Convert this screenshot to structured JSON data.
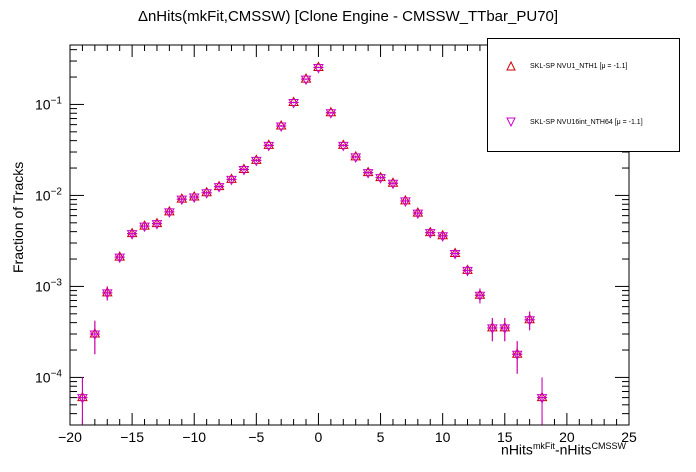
{
  "chart_data": {
    "type": "scatter",
    "title": "ΔnHits(mkFit,CMSSW) [Clone Engine - CMSSW_TTbar_PU70]",
    "xlabel": {
      "base1": "nHits",
      "sup1": "mkFit",
      "mid": "-nHits",
      "sup2": "CMSSW"
    },
    "ylabel": "Fraction of Tracks",
    "xlim": [
      -20,
      25
    ],
    "ylim": [
      3e-05,
      0.45
    ],
    "yscale": "log",
    "x_ticks": [
      "−20",
      "−15",
      "−10",
      "−5",
      "0",
      "5",
      "10",
      "15",
      "20",
      "25"
    ],
    "y_ticks": [
      {
        "base": "10",
        "exp": "−4",
        "value": 0.0001
      },
      {
        "base": "10",
        "exp": "−3",
        "value": 0.001
      },
      {
        "base": "10",
        "exp": "−2",
        "value": 0.01
      },
      {
        "base": "10",
        "exp": "−1",
        "value": 0.1
      }
    ],
    "legend_position": "top-right",
    "series": [
      {
        "name": "SKL-SP NVU1_NTH1 [μ = -1.1]",
        "marker": "triangle-up",
        "color": "#cc0000",
        "points": [
          [
            -19,
            6e-05,
            4e-05
          ],
          [
            -18,
            0.0003,
            0.00012
          ],
          [
            -17,
            0.00085,
            0.00015
          ],
          [
            -16,
            0.0021,
            0.00025
          ],
          [
            -15,
            0.0038,
            0.0003
          ],
          [
            -14,
            0.0046,
            0.0003
          ],
          [
            -13,
            0.0049,
            0.0003
          ],
          [
            -12,
            0.0066,
            0.0004
          ],
          [
            -11,
            0.0091,
            0.0005
          ],
          [
            -10,
            0.0096,
            0.0005
          ],
          [
            -9,
            0.0107,
            0.0005
          ],
          [
            -8,
            0.0125,
            0.0006
          ],
          [
            -7,
            0.015,
            0.0007
          ],
          [
            -6,
            0.0193,
            0.0008
          ],
          [
            -5,
            0.0243,
            0.0009
          ],
          [
            -4,
            0.0355,
            0.0011
          ],
          [
            -3,
            0.058,
            0.0014
          ],
          [
            -2,
            0.105,
            0.002
          ],
          [
            -1,
            0.19,
            0.003
          ],
          [
            0,
            0.255,
            0.004
          ],
          [
            1,
            0.081,
            0.002
          ],
          [
            2,
            0.0355,
            0.0011
          ],
          [
            3,
            0.0265,
            0.0009
          ],
          [
            4,
            0.0178,
            0.0008
          ],
          [
            5,
            0.0157,
            0.0007
          ],
          [
            6,
            0.0136,
            0.0007
          ],
          [
            7,
            0.0087,
            0.0005
          ],
          [
            8,
            0.0064,
            0.0004
          ],
          [
            9,
            0.0039,
            0.0003
          ],
          [
            10,
            0.0036,
            0.0003
          ],
          [
            11,
            0.0023,
            0.00025
          ],
          [
            12,
            0.0015,
            0.0002
          ],
          [
            13,
            0.0008,
            0.00015
          ],
          [
            14,
            0.00035,
            0.0001
          ],
          [
            15,
            0.00035,
            0.0001
          ],
          [
            16,
            0.00018,
            7e-05
          ],
          [
            17,
            0.00043,
            0.0001
          ],
          [
            18,
            6e-05,
            4e-05
          ]
        ]
      },
      {
        "name": "SKL-SP NVU16int_NTH64 [μ = -1.1]",
        "marker": "triangle-down",
        "color": "#cc00cc",
        "points": [
          [
            -19,
            6e-05,
            4e-05
          ],
          [
            -18,
            0.0003,
            0.00012
          ],
          [
            -17,
            0.00085,
            0.00015
          ],
          [
            -16,
            0.0021,
            0.00025
          ],
          [
            -15,
            0.0038,
            0.0003
          ],
          [
            -14,
            0.0046,
            0.0003
          ],
          [
            -13,
            0.0049,
            0.0003
          ],
          [
            -12,
            0.0066,
            0.0004
          ],
          [
            -11,
            0.0091,
            0.0005
          ],
          [
            -10,
            0.0096,
            0.0005
          ],
          [
            -9,
            0.0107,
            0.0005
          ],
          [
            -8,
            0.0125,
            0.0006
          ],
          [
            -7,
            0.015,
            0.0007
          ],
          [
            -6,
            0.0193,
            0.0008
          ],
          [
            -5,
            0.0243,
            0.0009
          ],
          [
            -4,
            0.0355,
            0.0011
          ],
          [
            -3,
            0.058,
            0.0014
          ],
          [
            -2,
            0.105,
            0.002
          ],
          [
            -1,
            0.19,
            0.003
          ],
          [
            0,
            0.255,
            0.004
          ],
          [
            1,
            0.081,
            0.002
          ],
          [
            2,
            0.0355,
            0.0011
          ],
          [
            3,
            0.0265,
            0.0009
          ],
          [
            4,
            0.0178,
            0.0008
          ],
          [
            5,
            0.0157,
            0.0007
          ],
          [
            6,
            0.0136,
            0.0007
          ],
          [
            7,
            0.0087,
            0.0005
          ],
          [
            8,
            0.0064,
            0.0004
          ],
          [
            9,
            0.0039,
            0.0003
          ],
          [
            10,
            0.0036,
            0.0003
          ],
          [
            11,
            0.0023,
            0.00025
          ],
          [
            12,
            0.0015,
            0.0002
          ],
          [
            13,
            0.0008,
            0.00015
          ],
          [
            14,
            0.00035,
            0.0001
          ],
          [
            15,
            0.00035,
            0.0001
          ],
          [
            16,
            0.00018,
            7e-05
          ],
          [
            17,
            0.00043,
            0.0001
          ],
          [
            18,
            6e-05,
            4e-05
          ]
        ]
      }
    ]
  }
}
